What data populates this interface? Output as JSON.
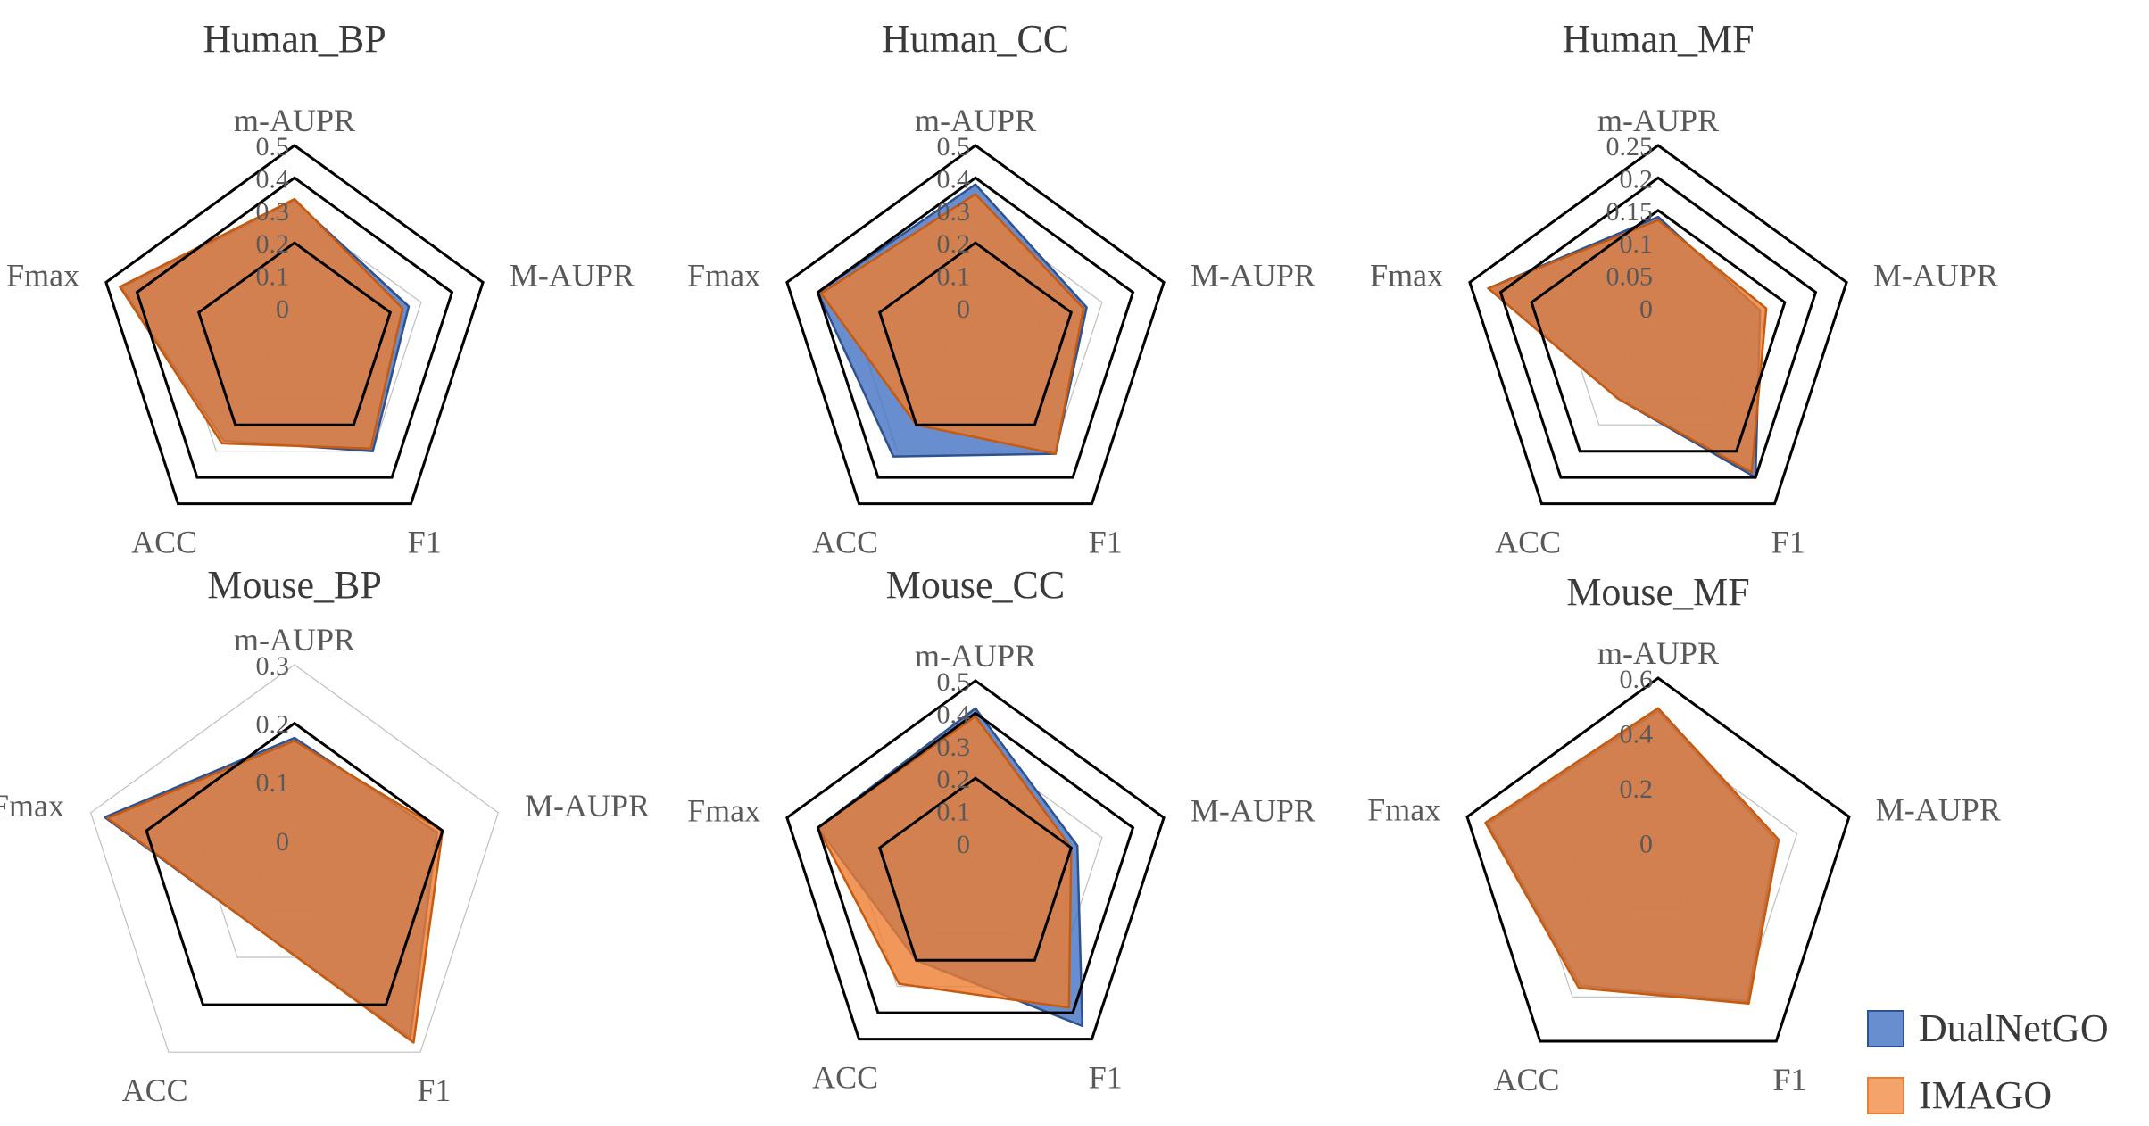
{
  "legend": {
    "items": [
      {
        "name": "DualNetGO",
        "color": "#4472C4",
        "fill": "#4472C4"
      },
      {
        "name": "IMAGO",
        "color": "#ED7D31",
        "fill": "#F4A46A"
      }
    ]
  },
  "chart_data": [
    {
      "type": "radar",
      "title": "Human_BP",
      "axes": [
        "m-AUPR",
        "M-AUPR",
        "F1",
        "ACC",
        "Fmax"
      ],
      "ticks": [
        "0",
        "0.1",
        "0.2",
        "0.3",
        "0.4",
        "0.5"
      ],
      "rmax": 0.5,
      "rings": [
        0.2,
        0.4,
        0.5
      ],
      "grid": true,
      "series": [
        {
          "name": "DualNetGO",
          "values": [
            0.33,
            0.26,
            0.3,
            0.26,
            0.45
          ]
        },
        {
          "name": "IMAGO",
          "values": [
            0.335,
            0.24,
            0.29,
            0.27,
            0.455
          ]
        }
      ]
    },
    {
      "type": "radar",
      "title": "Human_CC",
      "axes": [
        "m-AUPR",
        "M-AUPR",
        "F1",
        "ACC",
        "Fmax"
      ],
      "ticks": [
        "0",
        "0.1",
        "0.2",
        "0.3",
        "0.4",
        "0.5"
      ],
      "rmax": 0.5,
      "rings": [
        0.2,
        0.4,
        0.5
      ],
      "grid": true,
      "series": [
        {
          "name": "DualNetGO",
          "values": [
            0.38,
            0.25,
            0.31,
            0.32,
            0.4
          ]
        },
        {
          "name": "IMAGO",
          "values": [
            0.35,
            0.24,
            0.31,
            0.2,
            0.39
          ]
        }
      ]
    },
    {
      "type": "radar",
      "title": "Human_MF",
      "axes": [
        "m-AUPR",
        "M-AUPR",
        "F1",
        "ACC",
        "Fmax"
      ],
      "ticks": [
        "0",
        "0.05",
        "0.1",
        "0.15",
        "0.2",
        "0.25"
      ],
      "rmax": 0.25,
      "rings": [
        0.15,
        0.2,
        0.25
      ],
      "grid": true,
      "series": [
        {
          "name": "DualNetGO",
          "values": [
            0.14,
            0.11,
            0.2,
            0.05,
            0.22
          ]
        },
        {
          "name": "IMAGO",
          "values": [
            0.135,
            0.12,
            0.19,
            0.05,
            0.22
          ]
        }
      ]
    },
    {
      "type": "radar",
      "title": "Mouse_BP",
      "axes": [
        "m-AUPR",
        "M-AUPR",
        "F1",
        "ACC",
        "Fmax"
      ],
      "ticks": [
        "0",
        "0.1",
        "0.2",
        "0.3"
      ],
      "rmax": 0.3,
      "rings": [
        0.2
      ],
      "grid": true,
      "series": [
        {
          "name": "DualNetGO",
          "values": [
            0.175,
            0.19,
            0.27,
            0.04,
            0.275
          ]
        },
        {
          "name": "IMAGO",
          "values": [
            0.17,
            0.2,
            0.28,
            0.04,
            0.27
          ]
        }
      ]
    },
    {
      "type": "radar",
      "title": "Mouse_CC",
      "axes": [
        "m-AUPR",
        "M-AUPR",
        "F1",
        "ACC",
        "Fmax"
      ],
      "ticks": [
        "0",
        "0.1",
        "0.2",
        "0.3",
        "0.4",
        "0.5"
      ],
      "rmax": 0.5,
      "rings": [
        0.2,
        0.4,
        0.5
      ],
      "grid": true,
      "series": [
        {
          "name": "DualNetGO",
          "values": [
            0.415,
            0.22,
            0.45,
            0.2,
            0.4
          ]
        },
        {
          "name": "IMAGO",
          "values": [
            0.39,
            0.2,
            0.38,
            0.29,
            0.4
          ]
        }
      ]
    },
    {
      "type": "radar",
      "title": "Mouse_MF",
      "axes": [
        "m-AUPR",
        "M-AUPR",
        "F1",
        "ACC",
        "Fmax"
      ],
      "ticks": [
        "0",
        "0.2",
        "0.4",
        "0.6"
      ],
      "rmax": 0.6,
      "rings": [
        0.6
      ],
      "grid": true,
      "series": [
        {
          "name": "DualNetGO",
          "values": [
            0.48,
            0.32,
            0.42,
            0.35,
            0.52
          ]
        },
        {
          "name": "IMAGO",
          "values": [
            0.49,
            0.33,
            0.43,
            0.36,
            0.53
          ]
        }
      ]
    }
  ]
}
